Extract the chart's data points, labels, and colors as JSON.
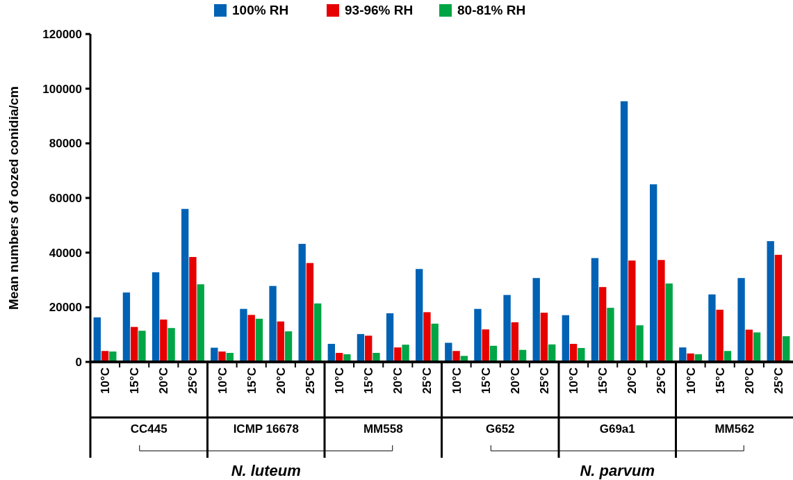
{
  "chart_data": {
    "type": "bar",
    "ylabel": "Mean numbers of oozed conidia/cm",
    "categories": [
      "10°C",
      "15°C",
      "20°C",
      "25°C",
      "10°C",
      "15°C",
      "20°C",
      "25°C",
      "10°C",
      "15°C",
      "20°C",
      "25°C",
      "10°C",
      "15°C",
      "20°C",
      "25°C",
      "10°C",
      "15°C",
      "20°C",
      "25°C",
      "10°C",
      "15°C",
      "20°C",
      "25°C"
    ],
    "series": [
      {
        "name": "100% RH",
        "color": "#0062b4",
        "values": [
          16300,
          25400,
          32800,
          56000,
          5200,
          19400,
          27800,
          43200,
          6600,
          10200,
          17800,
          34000,
          7000,
          19400,
          24500,
          30700,
          17100,
          38000,
          95400,
          65000,
          5300,
          24700,
          30700,
          44200
        ]
      },
      {
        "name": "93-96% RH",
        "color": "#e60000",
        "values": [
          4000,
          12800,
          15500,
          38400,
          3800,
          17200,
          14800,
          36200,
          3300,
          9600,
          5300,
          18200,
          4000,
          11900,
          14500,
          18000,
          6600,
          27400,
          37100,
          37300,
          3100,
          19100,
          11800,
          39200
        ]
      },
      {
        "name": "80-81% RH",
        "color": "#00a545",
        "values": [
          3800,
          11400,
          12400,
          28400,
          3300,
          15800,
          11200,
          21400,
          2800,
          3300,
          6300,
          14000,
          2200,
          5900,
          4400,
          6400,
          5100,
          19800,
          13400,
          28700,
          2800,
          4000,
          10800,
          9400
        ]
      }
    ],
    "ylim": [
      0,
      120000
    ],
    "yticks": [
      0,
      20000,
      40000,
      60000,
      80000,
      100000,
      120000
    ],
    "legend": "top",
    "annotations": [
      "CC445",
      "ICMP 16678",
      "MM558",
      "G652",
      "G69a1",
      "MM562",
      "N. luteum",
      "N. parvum"
    ]
  }
}
